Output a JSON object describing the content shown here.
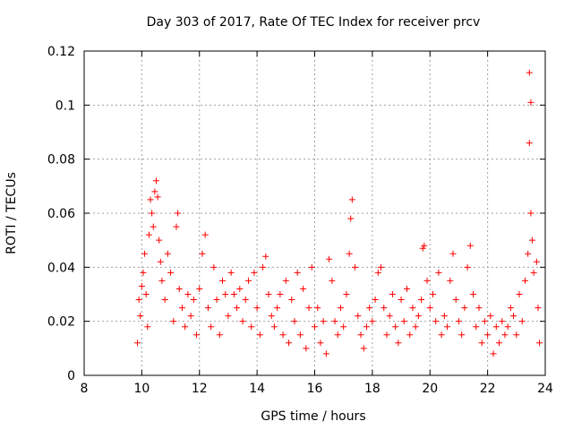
{
  "chart_data": {
    "type": "scatter",
    "title": "Day 303 of 2017, Rate Of TEC Index for receiver prcv",
    "xlabel": "GPS time / hours",
    "ylabel": "ROTI / TECUs",
    "xlim": [
      8,
      24
    ],
    "ylim": [
      0,
      0.12
    ],
    "xticks": [
      8,
      10,
      12,
      14,
      16,
      18,
      20,
      22,
      24
    ],
    "yticks": [
      0,
      0.02,
      0.04,
      0.06,
      0.08,
      0.1,
      0.12
    ],
    "xtick_labels": [
      "8",
      "10",
      "12",
      "14",
      "16",
      "18",
      "20",
      "22",
      "24"
    ],
    "ytick_labels": [
      "0",
      "0.02",
      "0.04",
      "0.06",
      "0.08",
      "0.1",
      "0.12"
    ],
    "grid": true,
    "marker": "+",
    "color": "#ff0000",
    "series": [
      {
        "name": "ROTI",
        "points": [
          [
            9.85,
            0.012
          ],
          [
            9.9,
            0.028
          ],
          [
            9.95,
            0.022
          ],
          [
            10.0,
            0.033
          ],
          [
            10.05,
            0.038
          ],
          [
            10.1,
            0.045
          ],
          [
            10.15,
            0.03
          ],
          [
            10.2,
            0.018
          ],
          [
            10.25,
            0.052
          ],
          [
            10.3,
            0.065
          ],
          [
            10.35,
            0.06
          ],
          [
            10.4,
            0.055
          ],
          [
            10.45,
            0.068
          ],
          [
            10.5,
            0.072
          ],
          [
            10.55,
            0.066
          ],
          [
            10.6,
            0.05
          ],
          [
            10.65,
            0.042
          ],
          [
            10.7,
            0.035
          ],
          [
            10.8,
            0.028
          ],
          [
            10.9,
            0.045
          ],
          [
            11.0,
            0.038
          ],
          [
            11.1,
            0.02
          ],
          [
            11.2,
            0.055
          ],
          [
            11.25,
            0.06
          ],
          [
            11.3,
            0.032
          ],
          [
            11.4,
            0.025
          ],
          [
            11.5,
            0.018
          ],
          [
            11.6,
            0.03
          ],
          [
            11.7,
            0.022
          ],
          [
            11.8,
            0.028
          ],
          [
            11.9,
            0.015
          ],
          [
            12.0,
            0.032
          ],
          [
            12.1,
            0.045
          ],
          [
            12.2,
            0.052
          ],
          [
            12.3,
            0.025
          ],
          [
            12.4,
            0.018
          ],
          [
            12.5,
            0.04
          ],
          [
            12.6,
            0.028
          ],
          [
            12.7,
            0.015
          ],
          [
            12.8,
            0.035
          ],
          [
            12.9,
            0.03
          ],
          [
            13.0,
            0.022
          ],
          [
            13.1,
            0.038
          ],
          [
            13.2,
            0.03
          ],
          [
            13.3,
            0.025
          ],
          [
            13.4,
            0.032
          ],
          [
            13.5,
            0.02
          ],
          [
            13.6,
            0.028
          ],
          [
            13.7,
            0.035
          ],
          [
            13.8,
            0.018
          ],
          [
            13.9,
            0.038
          ],
          [
            14.0,
            0.025
          ],
          [
            14.1,
            0.015
          ],
          [
            14.2,
            0.04
          ],
          [
            14.3,
            0.044
          ],
          [
            14.4,
            0.03
          ],
          [
            14.5,
            0.022
          ],
          [
            14.6,
            0.018
          ],
          [
            14.7,
            0.025
          ],
          [
            14.8,
            0.03
          ],
          [
            14.9,
            0.015
          ],
          [
            15.0,
            0.035
          ],
          [
            15.1,
            0.012
          ],
          [
            15.2,
            0.028
          ],
          [
            15.3,
            0.02
          ],
          [
            15.4,
            0.038
          ],
          [
            15.5,
            0.015
          ],
          [
            15.6,
            0.032
          ],
          [
            15.7,
            0.01
          ],
          [
            15.8,
            0.025
          ],
          [
            15.9,
            0.04
          ],
          [
            16.0,
            0.018
          ],
          [
            16.1,
            0.025
          ],
          [
            16.2,
            0.012
          ],
          [
            16.3,
            0.02
          ],
          [
            16.4,
            0.008
          ],
          [
            16.5,
            0.043
          ],
          [
            16.6,
            0.035
          ],
          [
            16.7,
            0.02
          ],
          [
            16.8,
            0.015
          ],
          [
            16.9,
            0.025
          ],
          [
            17.0,
            0.018
          ],
          [
            17.1,
            0.03
          ],
          [
            17.2,
            0.045
          ],
          [
            17.25,
            0.058
          ],
          [
            17.3,
            0.065
          ],
          [
            17.4,
            0.04
          ],
          [
            17.5,
            0.022
          ],
          [
            17.6,
            0.015
          ],
          [
            17.7,
            0.01
          ],
          [
            17.8,
            0.018
          ],
          [
            17.9,
            0.025
          ],
          [
            18.0,
            0.02
          ],
          [
            18.1,
            0.028
          ],
          [
            18.2,
            0.038
          ],
          [
            18.3,
            0.04
          ],
          [
            18.4,
            0.025
          ],
          [
            18.5,
            0.015
          ],
          [
            18.6,
            0.022
          ],
          [
            18.7,
            0.03
          ],
          [
            18.8,
            0.018
          ],
          [
            18.9,
            0.012
          ],
          [
            19.0,
            0.028
          ],
          [
            19.1,
            0.02
          ],
          [
            19.2,
            0.032
          ],
          [
            19.3,
            0.015
          ],
          [
            19.4,
            0.025
          ],
          [
            19.5,
            0.018
          ],
          [
            19.6,
            0.022
          ],
          [
            19.7,
            0.028
          ],
          [
            19.75,
            0.047
          ],
          [
            19.8,
            0.048
          ],
          [
            19.9,
            0.035
          ],
          [
            20.0,
            0.025
          ],
          [
            20.1,
            0.03
          ],
          [
            20.2,
            0.02
          ],
          [
            20.3,
            0.038
          ],
          [
            20.4,
            0.015
          ],
          [
            20.5,
            0.022
          ],
          [
            20.6,
            0.018
          ],
          [
            20.7,
            0.035
          ],
          [
            20.8,
            0.045
          ],
          [
            20.9,
            0.028
          ],
          [
            21.0,
            0.02
          ],
          [
            21.1,
            0.015
          ],
          [
            21.2,
            0.025
          ],
          [
            21.3,
            0.04
          ],
          [
            21.4,
            0.048
          ],
          [
            21.5,
            0.03
          ],
          [
            21.6,
            0.018
          ],
          [
            21.7,
            0.025
          ],
          [
            21.8,
            0.012
          ],
          [
            21.9,
            0.02
          ],
          [
            22.0,
            0.015
          ],
          [
            22.1,
            0.022
          ],
          [
            22.2,
            0.008
          ],
          [
            22.3,
            0.018
          ],
          [
            22.4,
            0.012
          ],
          [
            22.5,
            0.02
          ],
          [
            22.6,
            0.015
          ],
          [
            22.7,
            0.018
          ],
          [
            22.8,
            0.025
          ],
          [
            22.9,
            0.022
          ],
          [
            23.0,
            0.015
          ],
          [
            23.1,
            0.03
          ],
          [
            23.2,
            0.02
          ],
          [
            23.3,
            0.035
          ],
          [
            23.4,
            0.045
          ],
          [
            23.45,
            0.112
          ],
          [
            23.5,
            0.101
          ],
          [
            23.45,
            0.086
          ],
          [
            23.5,
            0.06
          ],
          [
            23.55,
            0.05
          ],
          [
            23.6,
            0.038
          ],
          [
            23.7,
            0.042
          ],
          [
            23.75,
            0.025
          ],
          [
            23.8,
            0.012
          ]
        ]
      }
    ]
  }
}
